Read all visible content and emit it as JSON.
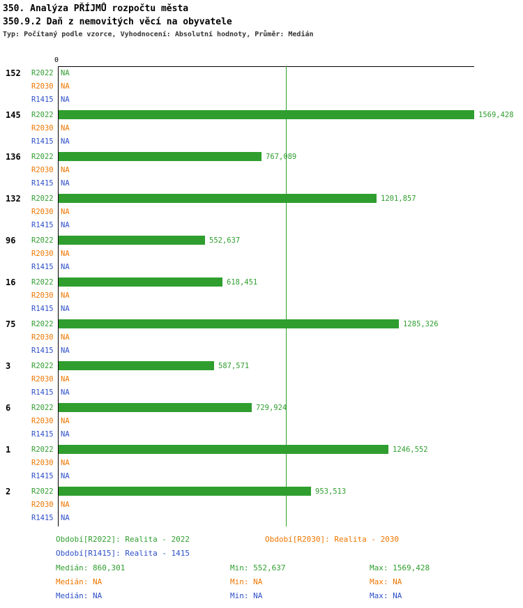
{
  "header": {
    "title": "350. Analýza PŘÍJMŮ rozpočtu města",
    "subtitle": "350.9.2 Daň z nemovitých věcí na obyvatele",
    "meta": "Typ: Počítaný podle vzorce, Vyhodnocení: Absolutní hodnoty, Průměr: Medián"
  },
  "colors": {
    "r2022": "#2f9e2f",
    "r2030": "#ee7600",
    "r1415": "#2d4fc8"
  },
  "chart_data": {
    "type": "bar",
    "orientation": "horizontal",
    "title": "350.9.2 Daň z nemovitých věcí na obyvatele",
    "x_axis": {
      "zero_label": "0",
      "min": 0,
      "max": 1569.428
    },
    "median_line_value": 860.301,
    "series": [
      "R2022",
      "R2030",
      "R1415"
    ],
    "legend_position": "bottom",
    "groups": [
      {
        "label": "152",
        "rows": [
          {
            "series": "R2022",
            "value": null,
            "display": "NA"
          },
          {
            "series": "R2030",
            "value": null,
            "display": "NA"
          },
          {
            "series": "R1415",
            "value": null,
            "display": "NA"
          }
        ]
      },
      {
        "label": "145",
        "rows": [
          {
            "series": "R2022",
            "value": 1569.428,
            "display": "1569,428"
          },
          {
            "series": "R2030",
            "value": null,
            "display": "NA"
          },
          {
            "series": "R1415",
            "value": null,
            "display": "NA"
          }
        ]
      },
      {
        "label": "136",
        "rows": [
          {
            "series": "R2022",
            "value": 767.089,
            "display": "767,089"
          },
          {
            "series": "R2030",
            "value": null,
            "display": "NA"
          },
          {
            "series": "R1415",
            "value": null,
            "display": "NA"
          }
        ]
      },
      {
        "label": "132",
        "rows": [
          {
            "series": "R2022",
            "value": 1201.857,
            "display": "1201,857"
          },
          {
            "series": "R2030",
            "value": null,
            "display": "NA"
          },
          {
            "series": "R1415",
            "value": null,
            "display": "NA"
          }
        ]
      },
      {
        "label": "96",
        "rows": [
          {
            "series": "R2022",
            "value": 552.637,
            "display": "552,637"
          },
          {
            "series": "R2030",
            "value": null,
            "display": "NA"
          },
          {
            "series": "R1415",
            "value": null,
            "display": "NA"
          }
        ]
      },
      {
        "label": "16",
        "rows": [
          {
            "series": "R2022",
            "value": 618.451,
            "display": "618,451"
          },
          {
            "series": "R2030",
            "value": null,
            "display": "NA"
          },
          {
            "series": "R1415",
            "value": null,
            "display": "NA"
          }
        ]
      },
      {
        "label": "75",
        "rows": [
          {
            "series": "R2022",
            "value": 1285.326,
            "display": "1285,326"
          },
          {
            "series": "R2030",
            "value": null,
            "display": "NA"
          },
          {
            "series": "R1415",
            "value": null,
            "display": "NA"
          }
        ]
      },
      {
        "label": "3",
        "rows": [
          {
            "series": "R2022",
            "value": 587.571,
            "display": "587,571"
          },
          {
            "series": "R2030",
            "value": null,
            "display": "NA"
          },
          {
            "series": "R1415",
            "value": null,
            "display": "NA"
          }
        ]
      },
      {
        "label": "6",
        "rows": [
          {
            "series": "R2022",
            "value": 729.924,
            "display": "729,924"
          },
          {
            "series": "R2030",
            "value": null,
            "display": "NA"
          },
          {
            "series": "R1415",
            "value": null,
            "display": "NA"
          }
        ]
      },
      {
        "label": "1",
        "rows": [
          {
            "series": "R2022",
            "value": 1246.552,
            "display": "1246,552"
          },
          {
            "series": "R2030",
            "value": null,
            "display": "NA"
          },
          {
            "series": "R1415",
            "value": null,
            "display": "NA"
          }
        ]
      },
      {
        "label": "2",
        "rows": [
          {
            "series": "R2022",
            "value": 953.513,
            "display": "953,513"
          },
          {
            "series": "R2030",
            "value": null,
            "display": "NA"
          },
          {
            "series": "R1415",
            "value": null,
            "display": "NA"
          }
        ]
      }
    ]
  },
  "legend": {
    "r2022": "Období[R2022]: Realita - 2022",
    "r2030": "Období[R2030]: Realita - 2030",
    "r1415": "Období[R1415]: Realita - 1415"
  },
  "stats": {
    "r2022": {
      "median": "Medián: 860,301",
      "min": "Min: 552,637",
      "max": "Max: 1569,428"
    },
    "r2030": {
      "median": "Medián: NA",
      "min": "Min: NA",
      "max": "Max: NA"
    },
    "r1415": {
      "median": "Medián: NA",
      "min": "Min: NA",
      "max": "Max: NA"
    }
  }
}
